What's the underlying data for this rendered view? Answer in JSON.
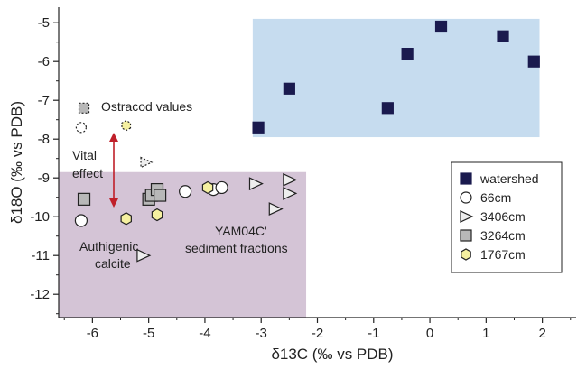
{
  "chart_data": {
    "type": "scatter",
    "xlabel": "δ13C (‰ vs PDB)",
    "xlabel_parts": {
      "prefix": "δ",
      "sup": "13",
      "main": "C (‰ vs PDB)"
    },
    "ylabel": "δ18O (‰ vs PDB)",
    "ylabel_parts": {
      "prefix": "δ",
      "sup": "18",
      "main": "O (‰ vs PDB)"
    },
    "xlim": [
      -6.6,
      2.6
    ],
    "ylim": [
      -12.6,
      -4.6
    ],
    "x_ticks": [
      -6,
      -5,
      -4,
      -3,
      -2,
      -1,
      0,
      1,
      2
    ],
    "y_ticks": [
      -5,
      -6,
      -7,
      -8,
      -9,
      -10,
      -11,
      -12
    ],
    "grid": false,
    "legend_position": "right",
    "regions": [
      {
        "name": "watershed-region",
        "x": [
          -3.15,
          1.95
        ],
        "y": [
          -7.95,
          -4.9
        ],
        "color": "#c6dcef"
      },
      {
        "name": "sediment-region",
        "x": [
          -6.6,
          -2.2
        ],
        "y": [
          -12.6,
          -8.85
        ],
        "color": "#d4c4d6"
      }
    ],
    "series": [
      {
        "name": "watershed",
        "marker": "square",
        "fill": "#1a1a4e",
        "stroke": "#1a1a4e",
        "points": [
          {
            "x": -3.05,
            "y": -7.7
          },
          {
            "x": -2.5,
            "y": -6.7
          },
          {
            "x": -0.75,
            "y": -7.2
          },
          {
            "x": -0.4,
            "y": -5.8
          },
          {
            "x": 0.2,
            "y": -5.1
          },
          {
            "x": 1.3,
            "y": -5.35
          },
          {
            "x": 1.85,
            "y": -6.0
          }
        ]
      },
      {
        "name": "66cm",
        "marker": "circle",
        "fill": "#ffffff",
        "stroke": "#222222",
        "points": [
          {
            "x": -6.2,
            "y": -10.1
          },
          {
            "x": -4.35,
            "y": -9.35
          },
          {
            "x": -3.85,
            "y": -9.3
          },
          {
            "x": -3.7,
            "y": -9.25
          }
        ]
      },
      {
        "name": "3406cm",
        "marker": "triangle",
        "fill": "#eeeeee",
        "stroke": "#222222",
        "points": [
          {
            "x": -5.1,
            "y": -11.0
          },
          {
            "x": -3.1,
            "y": -9.15
          },
          {
            "x": -2.75,
            "y": -9.8
          },
          {
            "x": -2.5,
            "y": -9.05
          },
          {
            "x": -2.5,
            "y": -9.4
          }
        ]
      },
      {
        "name": "3264cm",
        "marker": "square",
        "fill": "#b8b8b8",
        "stroke": "#222222",
        "points": [
          {
            "x": -6.15,
            "y": -9.55
          },
          {
            "x": -5.0,
            "y": -9.55
          },
          {
            "x": -4.95,
            "y": -9.45
          },
          {
            "x": -4.85,
            "y": -9.3
          },
          {
            "x": -4.8,
            "y": -9.45
          }
        ]
      },
      {
        "name": "1767cm",
        "marker": "hexagon",
        "fill": "#f5f0a0",
        "stroke": "#222222",
        "points": [
          {
            "x": -5.4,
            "y": -10.05
          },
          {
            "x": -4.85,
            "y": -9.95
          },
          {
            "x": -3.95,
            "y": -9.25
          }
        ]
      }
    ],
    "ostracod_points": [
      {
        "marker": "square",
        "x": -6.15,
        "y": -7.2,
        "fill": "#b8b8b8"
      },
      {
        "marker": "circle",
        "x": -6.2,
        "y": -7.7,
        "fill": "#ffffff"
      },
      {
        "marker": "hexagon",
        "x": -5.4,
        "y": -7.65,
        "fill": "#f5f0a0"
      },
      {
        "marker": "triangle",
        "x": -5.05,
        "y": -8.6,
        "fill": "#eeeeee"
      }
    ],
    "annotations": {
      "ostracod": "Ostracod values",
      "vital_line1": "Vital",
      "vital_line2": "effect",
      "vital_color": "#c0202a",
      "authigenic_line1": "Authigenic",
      "authigenic_line2": "calcite",
      "yam_line1": "YAM04C'",
      "yam_line2": "sediment fractions"
    }
  }
}
